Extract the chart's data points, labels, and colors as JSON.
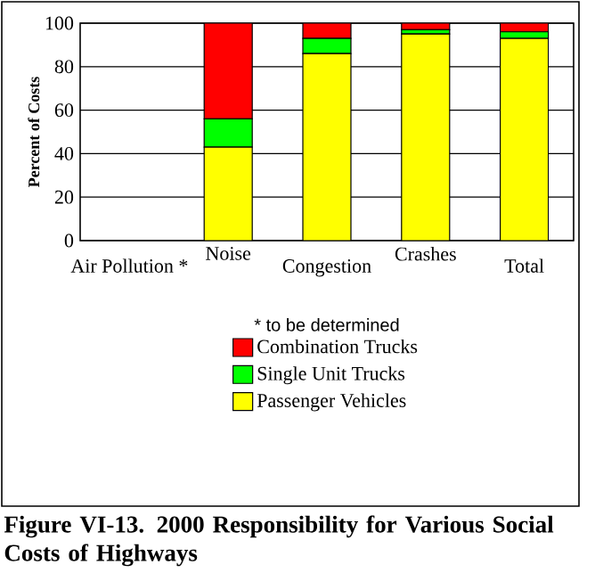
{
  "chart_data": {
    "type": "bar",
    "stacked": true,
    "title": "Figure VI-13.  2000 Responsibility for Various Social Costs of Highways",
    "ylabel": "Percent of Costs",
    "categories": [
      "Air Pollution *",
      "Noise",
      "Congestion",
      "Crashes",
      "Total"
    ],
    "series": [
      {
        "name": "Passenger Vehicles",
        "color": "#ffff00",
        "values": [
          null,
          43,
          86,
          95,
          93
        ]
      },
      {
        "name": "Single Unit Trucks",
        "color": "#00ff00",
        "values": [
          null,
          13,
          7,
          2,
          3
        ]
      },
      {
        "name": "Combination Trucks",
        "color": "#ff0000",
        "values": [
          null,
          44,
          7,
          3,
          4
        ]
      }
    ],
    "ylim": [
      0,
      100
    ],
    "yticks": [
      0,
      20,
      40,
      60,
      80,
      100
    ],
    "grid": "y",
    "legend": "bottom",
    "annotations": [
      "* to be determined"
    ]
  }
}
